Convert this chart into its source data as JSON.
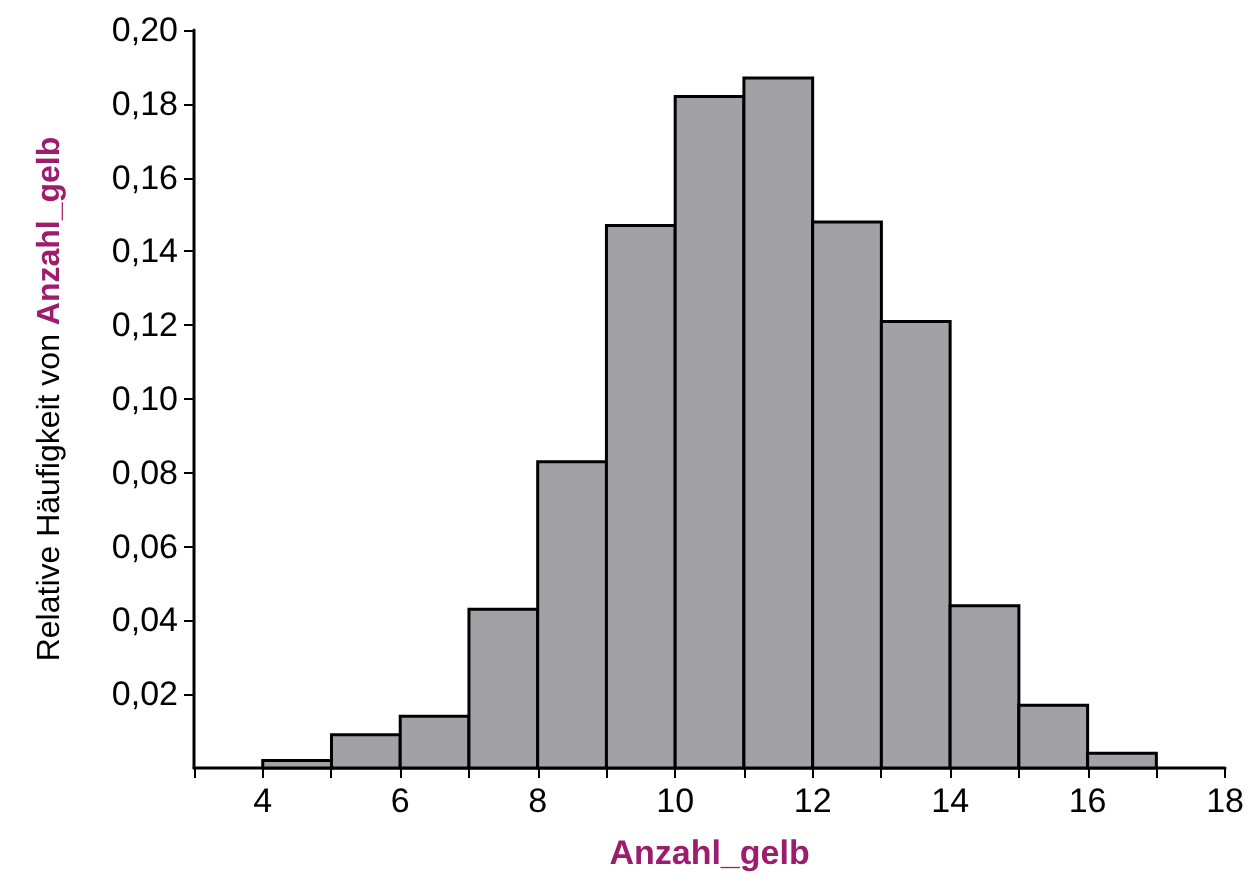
{
  "chart_data": {
    "type": "histogram",
    "xlabel": "Anzahl_gelb",
    "ylabel": "Relative Häufigkeit von Anzahl_gelb",
    "bins": [
      4,
      5,
      6,
      7,
      8,
      9,
      10,
      11,
      12,
      13,
      14,
      15,
      16,
      17
    ],
    "values": [
      0.002,
      0.009,
      0.014,
      0.043,
      0.083,
      0.147,
      0.182,
      0.187,
      0.148,
      0.121,
      0.044,
      0.017,
      0.004
    ],
    "color": "#a2a1a6",
    "xlim": [
      3,
      18
    ],
    "xticks": [
      {
        "value": 3,
        "label": null
      },
      4,
      {
        "value": 5,
        "label": null
      },
      6,
      {
        "value": 7,
        "label": null
      },
      8,
      {
        "value": 9,
        "label": null
      },
      10,
      {
        "value": 11,
        "label": null
      },
      12,
      {
        "value": 13,
        "label": null
      },
      14,
      {
        "value": 15,
        "label": null
      },
      16,
      {
        "value": 17,
        "label": null
      },
      18
    ],
    "ylim": [
      0,
      0.2
    ],
    "yticks": [
      {
        "value": 0.02,
        "label": "0,02"
      },
      {
        "value": 0.04,
        "label": "0,04"
      },
      {
        "value": 0.06,
        "label": "0,06"
      },
      {
        "value": 0.08,
        "label": "0,08"
      },
      {
        "value": 0.1,
        "label": "0,10"
      },
      {
        "value": 0.12,
        "label": "0,12"
      },
      {
        "value": 0.14,
        "label": "0,14"
      },
      {
        "value": 0.16,
        "label": "0,16"
      },
      {
        "value": 0.18,
        "label": "0,18"
      },
      {
        "value": 0.2,
        "label": "0,20"
      }
    ],
    "grid": false
  }
}
